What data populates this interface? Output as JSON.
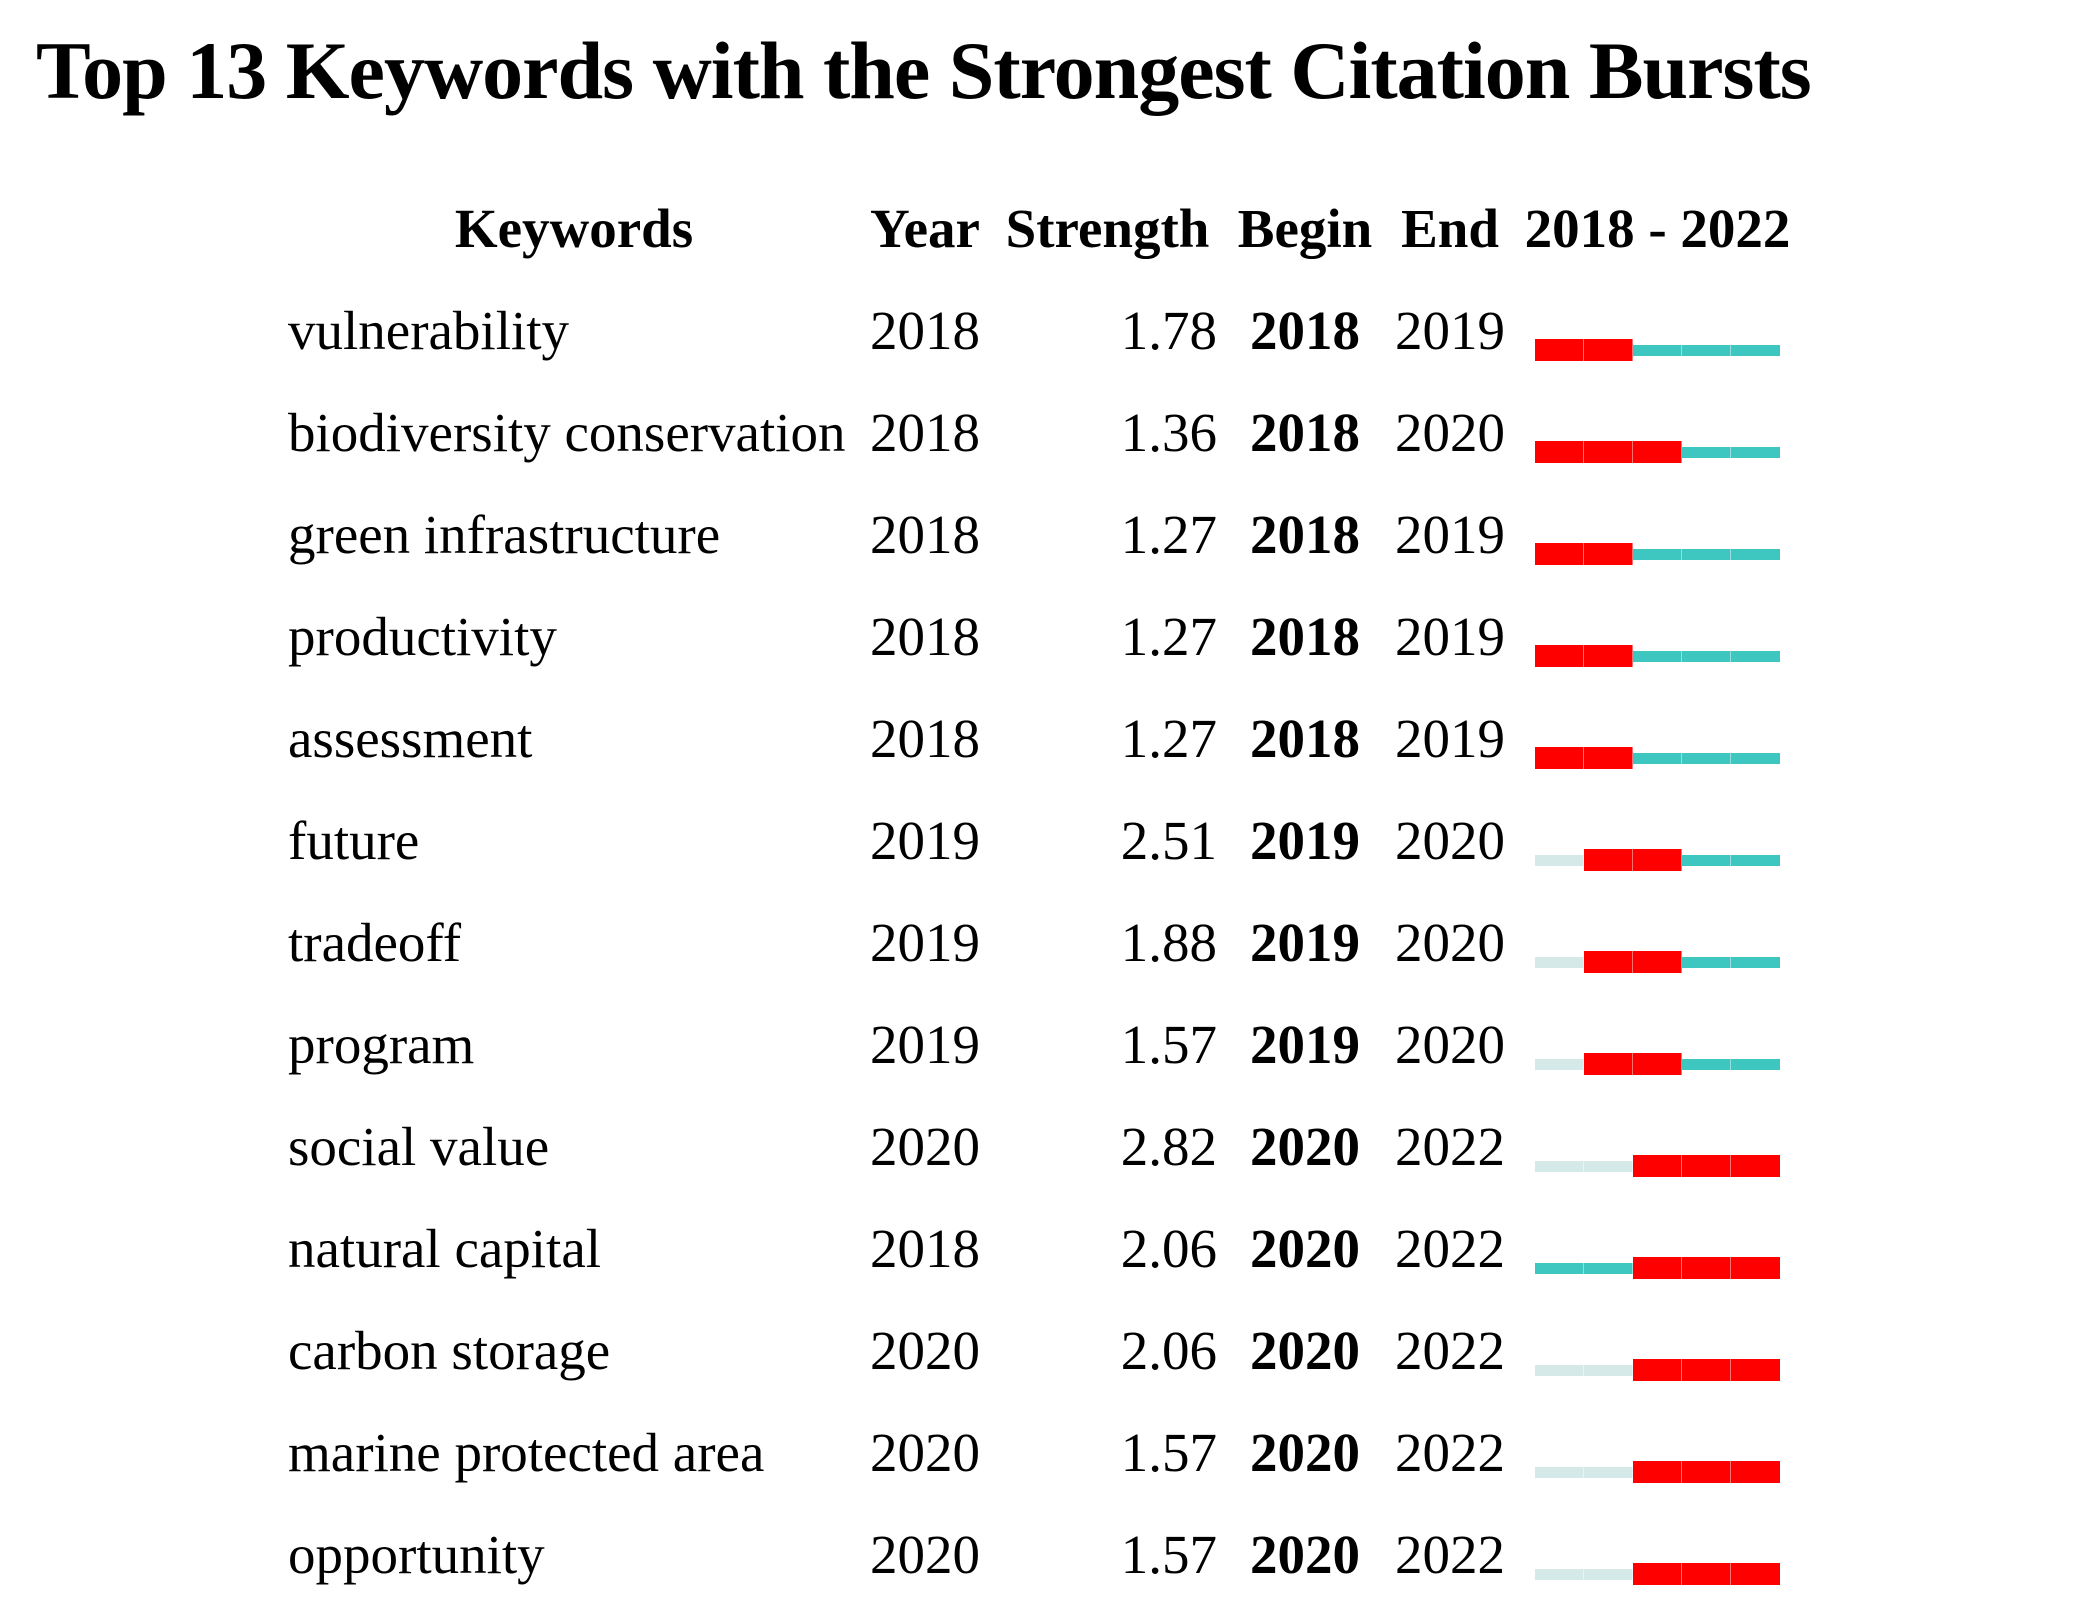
{
  "title": "Top 13 Keywords with the Strongest Citation Bursts",
  "columns": {
    "keywords": "Keywords",
    "year": "Year",
    "strength": "Strength",
    "begin": "Begin",
    "end": "End",
    "period": "2018 - 2022"
  },
  "colors": {
    "burst": "#FF0000",
    "active": "#3EC6C1",
    "inactive": "#D5E9E9"
  },
  "chart_data": {
    "type": "table",
    "title": "Top 13 Keywords with the Strongest Citation Bursts",
    "columns": [
      "Keywords",
      "Year",
      "Strength",
      "Begin",
      "End",
      "2018 - 2022"
    ],
    "period_start": 2018,
    "period_end": 2022,
    "legend": {
      "burst": "burst years (red)",
      "active": "active non-burst years (teal)",
      "inactive": "years before keyword appeared (pale)"
    },
    "rows": [
      {
        "keyword": "vulnerability",
        "year": "2018",
        "strength": "1.78",
        "begin": "2018",
        "end": "2019",
        "segments": [
          "burst",
          "burst",
          "active",
          "active",
          "active"
        ]
      },
      {
        "keyword": "biodiversity conservation",
        "year": "2018",
        "strength": "1.36",
        "begin": "2018",
        "end": "2020",
        "segments": [
          "burst",
          "burst",
          "burst",
          "active",
          "active"
        ]
      },
      {
        "keyword": "green infrastructure",
        "year": "2018",
        "strength": "1.27",
        "begin": "2018",
        "end": "2019",
        "segments": [
          "burst",
          "burst",
          "active",
          "active",
          "active"
        ]
      },
      {
        "keyword": "productivity",
        "year": "2018",
        "strength": "1.27",
        "begin": "2018",
        "end": "2019",
        "segments": [
          "burst",
          "burst",
          "active",
          "active",
          "active"
        ]
      },
      {
        "keyword": "assessment",
        "year": "2018",
        "strength": "1.27",
        "begin": "2018",
        "end": "2019",
        "segments": [
          "burst",
          "burst",
          "active",
          "active",
          "active"
        ]
      },
      {
        "keyword": "future",
        "year": "2019",
        "strength": "2.51",
        "begin": "2019",
        "end": "2020",
        "segments": [
          "inactive",
          "burst",
          "burst",
          "active",
          "active"
        ]
      },
      {
        "keyword": "tradeoff",
        "year": "2019",
        "strength": "1.88",
        "begin": "2019",
        "end": "2020",
        "segments": [
          "inactive",
          "burst",
          "burst",
          "active",
          "active"
        ]
      },
      {
        "keyword": "program",
        "year": "2019",
        "strength": "1.57",
        "begin": "2019",
        "end": "2020",
        "segments": [
          "inactive",
          "burst",
          "burst",
          "active",
          "active"
        ]
      },
      {
        "keyword": "social value",
        "year": "2020",
        "strength": "2.82",
        "begin": "2020",
        "end": "2022",
        "segments": [
          "inactive",
          "inactive",
          "burst",
          "burst",
          "burst"
        ]
      },
      {
        "keyword": "natural capital",
        "year": "2018",
        "strength": "2.06",
        "begin": "2020",
        "end": "2022",
        "segments": [
          "active",
          "active",
          "burst",
          "burst",
          "burst"
        ]
      },
      {
        "keyword": "carbon storage",
        "year": "2020",
        "strength": "2.06",
        "begin": "2020",
        "end": "2022",
        "segments": [
          "inactive",
          "inactive",
          "burst",
          "burst",
          "burst"
        ]
      },
      {
        "keyword": "marine protected area",
        "year": "2020",
        "strength": "1.57",
        "begin": "2020",
        "end": "2022",
        "segments": [
          "inactive",
          "inactive",
          "burst",
          "burst",
          "burst"
        ]
      },
      {
        "keyword": "opportunity",
        "year": "2020",
        "strength": "1.57",
        "begin": "2020",
        "end": "2022",
        "segments": [
          "inactive",
          "inactive",
          "burst",
          "burst",
          "burst"
        ]
      }
    ]
  }
}
